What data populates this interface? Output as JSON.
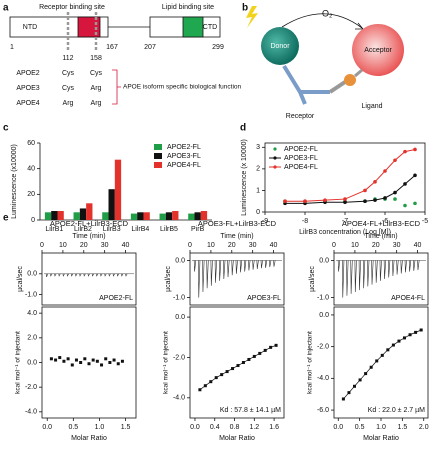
{
  "diagram_a": {
    "panel": "a",
    "receptor_site": "Receptor binding site",
    "lipid_site": "Lipid binding site",
    "ntd": "NTD",
    "ctd": "CTD",
    "positions": [
      "1",
      "112",
      "158",
      "167",
      "207",
      "299"
    ],
    "rows": [
      [
        "APOE2",
        "Cys",
        "Cys"
      ],
      [
        "APOE3",
        "Cys",
        "Arg"
      ],
      [
        "APOE4",
        "Arg",
        "Arg"
      ]
    ],
    "note": "APOE isoform specific biological function"
  },
  "diagram_b": {
    "panel": "b",
    "o2": "O₂",
    "donor": "Donor",
    "acceptor": "Acceptor",
    "receptor": "Receptor",
    "ligand": "Ligand"
  },
  "chart_data": [
    {
      "type": "bar",
      "panel": "c",
      "ylabel": "Luminescence (x10000)",
      "categories": [
        "LilrB1",
        "LilrB2",
        "LilrB3",
        "LilrB4",
        "LilrB5",
        "PirB"
      ],
      "series": [
        {
          "name": "APOE2-FL",
          "color": "#1f9e47",
          "values": [
            6,
            6,
            6,
            5,
            5,
            5
          ]
        },
        {
          "name": "APOE3-FL",
          "color": "#111111",
          "values": [
            7,
            9,
            24,
            6,
            6,
            6
          ]
        },
        {
          "name": "APOE4-FL",
          "color": "#e3312b",
          "values": [
            7,
            13,
            47,
            6,
            7,
            7
          ]
        }
      ],
      "ylim": [
        0,
        60
      ],
      "yticks": [
        0,
        20,
        40,
        60
      ],
      "legend": "upper right"
    },
    {
      "type": "line",
      "panel": "d",
      "xlabel": "LilrB3 concentration (Log [M])",
      "ylabel": "Luminescence (x 10000)",
      "x": [
        -8.5,
        -8,
        -7.5,
        -7,
        -6.5,
        -6.25,
        -6,
        -5.75,
        -5.5,
        -5.25
      ],
      "series": [
        {
          "name": "APOE2-FL",
          "color": "#1f9e47",
          "line": false,
          "values": [
            0.5,
            0.5,
            0.5,
            0.5,
            0.5,
            0.6,
            0.6,
            0.6,
            0.3,
            0.4
          ]
        },
        {
          "name": "APOE3-FL",
          "color": "#111111",
          "line": true,
          "values": [
            0.4,
            0.4,
            0.45,
            0.45,
            0.5,
            0.55,
            0.65,
            0.9,
            1.3,
            1.7
          ]
        },
        {
          "name": "APOE4-FL",
          "color": "#e3312b",
          "line": true,
          "values": [
            0.5,
            0.5,
            0.55,
            0.6,
            1.0,
            1.4,
            1.9,
            2.4,
            2.8,
            2.9
          ]
        }
      ],
      "xlim": [
        -9,
        -5
      ],
      "xticks": [
        -9,
        -8,
        -7,
        -6,
        -5
      ],
      "ylim": [
        0,
        3.2
      ],
      "yticks": [
        0,
        1,
        2,
        3
      ],
      "legend": "upper left"
    },
    {
      "type": "itc",
      "panel": "e",
      "title": "APOE2-FL+LilrB3-ECD",
      "top": {
        "xlabel": "Time (min)",
        "ylabel": "µcal/sec",
        "label": "APOE2-FL",
        "xlim": [
          0,
          45
        ],
        "xticks": [
          0,
          10,
          20,
          30,
          40
        ],
        "ylim": [
          -1.5,
          1.0
        ],
        "yticks": [
          {
            "value": 0,
            "label": "0.0"
          },
          {
            "value": -1,
            "label": "-1.0"
          }
        ],
        "times": [
          2,
          4,
          6,
          8,
          10,
          12,
          14,
          16,
          18,
          20,
          22,
          24,
          26,
          28,
          30,
          32,
          34,
          36,
          38,
          40
        ],
        "peaks": [
          -0.15,
          -0.1,
          -0.1,
          -0.1,
          -0.1,
          -0.1,
          -0.1,
          -0.1,
          -0.1,
          -0.1,
          -0.1,
          -0.1,
          -0.1,
          -0.1,
          -0.1,
          -0.1,
          -0.1,
          -0.1,
          -0.1,
          -0.1
        ]
      },
      "bottom": {
        "xlabel": "Molar Ratio",
        "ylabel": "kcal mol⁻¹ of injectant",
        "fit": false,
        "xlim": [
          -0.1,
          1.7
        ],
        "xticks": [
          {
            "value": 0,
            "label": "0.0"
          },
          {
            "value": 0.5,
            "label": "0.5"
          },
          {
            "value": 1,
            "label": "1.0"
          },
          {
            "value": 1.5,
            "label": "1.5"
          }
        ],
        "ylim": [
          -4.5,
          4.5
        ],
        "yticks": [
          {
            "value": 4,
            "label": "4.0"
          },
          {
            "value": 2,
            "label": "2.0"
          },
          {
            "value": 0,
            "label": "0.0"
          },
          {
            "value": -2,
            "label": "-2.0"
          },
          {
            "value": -4,
            "label": "-4.0"
          }
        ],
        "x": [
          0.08,
          0.16,
          0.24,
          0.32,
          0.4,
          0.48,
          0.56,
          0.64,
          0.72,
          0.8,
          0.88,
          0.96,
          1.04,
          1.12,
          1.2,
          1.28,
          1.36,
          1.44
        ],
        "y": [
          0.3,
          0.2,
          0.4,
          0.1,
          0.3,
          -0.2,
          0.2,
          0.0,
          0.3,
          -0.1,
          0.2,
          0.1,
          -0.2,
          0.3,
          0.0,
          0.2,
          -0.1,
          0.1
        ]
      }
    },
    {
      "type": "itc",
      "title": "APOE3-FL+LilrB3-ECD",
      "top": {
        "xlabel": "Time (min)",
        "ylabel": "µcal/sec",
        "label": "APOE3-FL",
        "xlim": [
          0,
          45
        ],
        "xticks": [
          0,
          10,
          20,
          30,
          40
        ],
        "ylim": [
          -1.2,
          0.2
        ],
        "yticks": [
          {
            "value": 0,
            "label": "0.0"
          },
          {
            "value": -1,
            "label": "-1.0"
          }
        ],
        "times": [
          2,
          4,
          6,
          8,
          10,
          12,
          14,
          16,
          18,
          20,
          22,
          24,
          26,
          28,
          30,
          32,
          34,
          36,
          38,
          40
        ],
        "peaks": [
          -0.3,
          -1.0,
          -0.85,
          -0.75,
          -0.68,
          -0.6,
          -0.55,
          -0.5,
          -0.45,
          -0.4,
          -0.36,
          -0.32,
          -0.3,
          -0.27,
          -0.25,
          -0.23,
          -0.21,
          -0.2,
          -0.18,
          -0.17
        ]
      },
      "bottom": {
        "xlabel": "Molar Ratio",
        "ylabel": "kcal mol⁻¹ of injectant",
        "fit": true,
        "annotation": "Kd : 57.8 ± 14.1 µM",
        "xlim": [
          -0.1,
          1.8
        ],
        "xticks": [
          {
            "value": 0,
            "label": "0.0"
          },
          {
            "value": 0.4,
            "label": "0.4"
          },
          {
            "value": 0.8,
            "label": "0.8"
          },
          {
            "value": 1.2,
            "label": "1.2"
          },
          {
            "value": 1.6,
            "label": "1.6"
          }
        ],
        "ylim": [
          -5,
          0.5
        ],
        "yticks": [
          {
            "value": 0,
            "label": "0.0"
          },
          {
            "value": -2,
            "label": "-2.0"
          },
          {
            "value": -4,
            "label": "-4.0"
          }
        ],
        "x": [
          0.1,
          0.21,
          0.32,
          0.43,
          0.54,
          0.65,
          0.76,
          0.87,
          0.98,
          1.09,
          1.2,
          1.31,
          1.42,
          1.53,
          1.64
        ],
        "y": [
          -3.6,
          -3.4,
          -3.2,
          -3.0,
          -2.85,
          -2.7,
          -2.55,
          -2.4,
          -2.25,
          -2.1,
          -1.95,
          -1.8,
          -1.65,
          -1.5,
          -1.4
        ]
      }
    },
    {
      "type": "itc",
      "title": "APOE4-FL+LilrB3-ECD",
      "top": {
        "xlabel": "Time (min)",
        "ylabel": "µcal/sec",
        "label": "APOE4-FL",
        "xlim": [
          0,
          45
        ],
        "xticks": [
          0,
          10,
          20,
          30,
          40
        ],
        "ylim": [
          -1.2,
          0.2
        ],
        "yticks": [
          {
            "value": 0,
            "label": "0.0"
          },
          {
            "value": -1,
            "label": "-1.0"
          }
        ],
        "times": [
          2,
          4,
          6,
          8,
          10,
          12,
          14,
          16,
          18,
          20,
          22,
          24,
          26,
          28,
          30,
          32,
          34,
          36,
          38,
          40
        ],
        "peaks": [
          -0.3,
          -1.0,
          -0.95,
          -0.9,
          -0.85,
          -0.8,
          -0.75,
          -0.7,
          -0.65,
          -0.6,
          -0.55,
          -0.5,
          -0.46,
          -0.42,
          -0.38,
          -0.35,
          -0.32,
          -0.3,
          -0.28,
          -0.26
        ]
      },
      "bottom": {
        "xlabel": "Molar Ratio",
        "ylabel": "kcal mol⁻¹ of injectant",
        "fit": true,
        "annotation": "Kd : 22.0 ± 2.7 µM",
        "xlim": [
          -0.1,
          2.1
        ],
        "xticks": [
          {
            "value": 0,
            "label": "0.0"
          },
          {
            "value": 0.5,
            "label": "0.5"
          },
          {
            "value": 1,
            "label": "1.0"
          },
          {
            "value": 1.5,
            "label": "1.5"
          },
          {
            "value": 2,
            "label": "2.0"
          }
        ],
        "ylim": [
          -6.5,
          0.5
        ],
        "yticks": [
          {
            "value": 0,
            "label": "0.0"
          },
          {
            "value": -2,
            "label": "-2.0"
          },
          {
            "value": -4,
            "label": "-4.0"
          },
          {
            "value": -6,
            "label": "-6.0"
          }
        ],
        "x": [
          0.12,
          0.25,
          0.38,
          0.51,
          0.64,
          0.77,
          0.9,
          1.03,
          1.16,
          1.29,
          1.42,
          1.55,
          1.68,
          1.81,
          1.94
        ],
        "y": [
          -5.3,
          -4.9,
          -4.5,
          -4.1,
          -3.7,
          -3.3,
          -2.9,
          -2.55,
          -2.2,
          -1.9,
          -1.65,
          -1.45,
          -1.25,
          -1.1,
          -0.95
        ]
      }
    }
  ]
}
